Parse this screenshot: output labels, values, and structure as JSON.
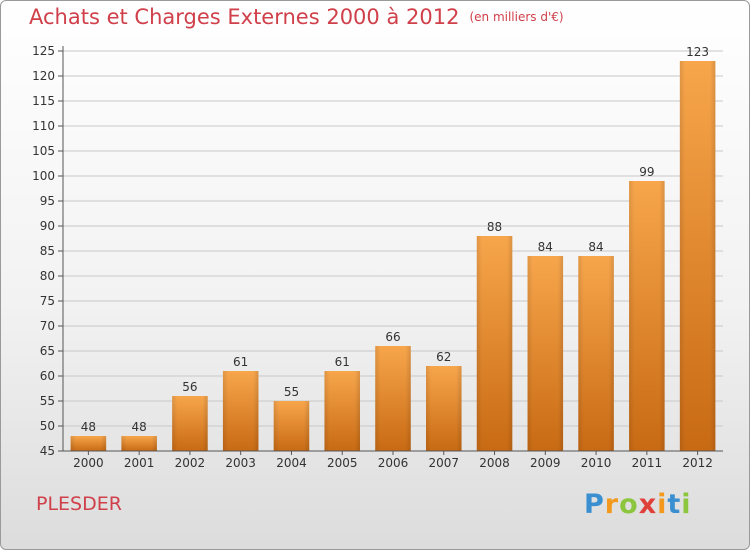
{
  "header": {
    "title": "Achats et Charges Externes 2000 à 2012",
    "unit": "(en milliers d'€)"
  },
  "footer": {
    "commune": "PLESDER",
    "logo_text": "Proxiti"
  },
  "colors": {
    "bar": "#f4a045",
    "bar_dark": "#c86a14",
    "title": "#d0404a",
    "grid": "#c8c8c8"
  },
  "chart_data": {
    "type": "bar",
    "title": "Achats et Charges Externes 2000 à 2012",
    "subtitle": "(en milliers d'€)",
    "xlabel": "",
    "ylabel": "",
    "categories": [
      "2000",
      "2001",
      "2002",
      "2003",
      "2004",
      "2005",
      "2006",
      "2007",
      "2008",
      "2009",
      "2010",
      "2011",
      "2012"
    ],
    "values": [
      48,
      48,
      56,
      61,
      55,
      61,
      66,
      62,
      88,
      84,
      84,
      99,
      123
    ],
    "ylim": [
      45,
      125
    ],
    "yticks": [
      45,
      50,
      55,
      60,
      65,
      70,
      75,
      80,
      85,
      90,
      95,
      100,
      105,
      110,
      115,
      120,
      125
    ],
    "grid": true,
    "legend": "none"
  }
}
